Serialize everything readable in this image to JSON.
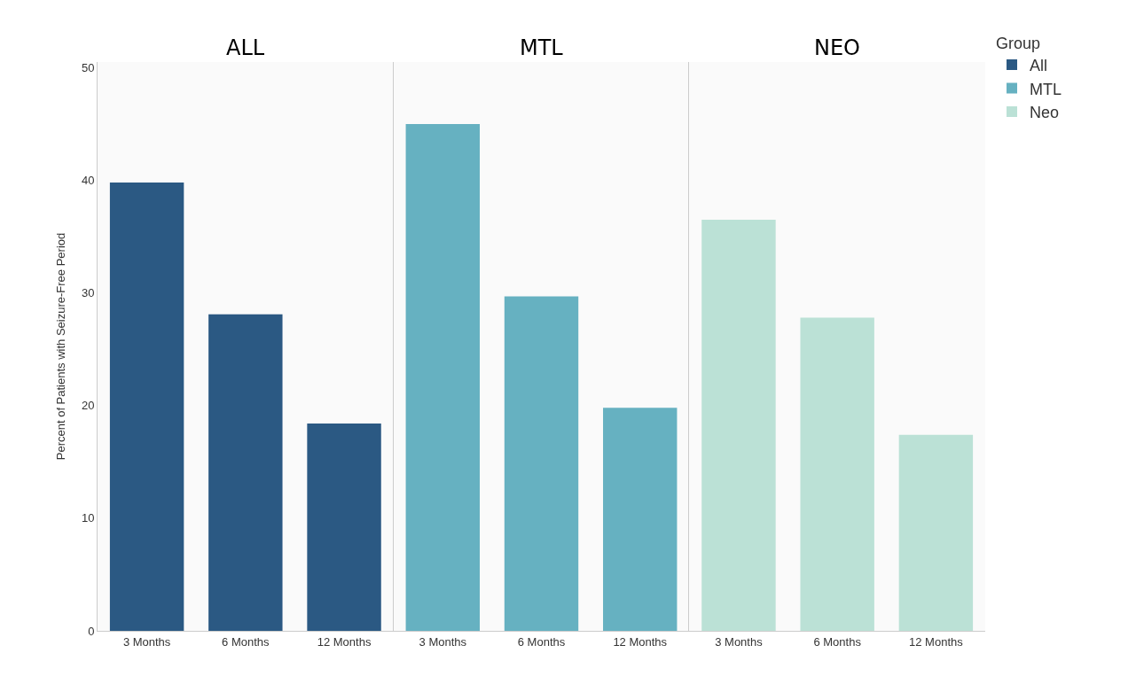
{
  "chart_data": [
    {
      "type": "bar",
      "title": "ALL",
      "ylabel": "Percent of Patients with Seizure-Free Period",
      "categories": [
        "3 Months",
        "6 Months",
        "12 Months"
      ],
      "series": [
        {
          "name": "All",
          "color": "#2b5983",
          "values": [
            39.8,
            28.1,
            18.4
          ]
        }
      ],
      "ylim": [
        0,
        50.5
      ],
      "yticks": [
        0,
        10,
        20,
        30,
        40,
        50
      ],
      "grid": false,
      "legend": "top right",
      "legend_title": "Group"
    },
    {
      "type": "bar",
      "title": "MTL",
      "categories": [
        "3 Months",
        "6 Months",
        "12 Months"
      ],
      "series": [
        {
          "name": "MTL",
          "color": "#66b1c1",
          "values": [
            45.0,
            29.7,
            19.8
          ]
        }
      ],
      "ylim": [
        0,
        50.5
      ],
      "yticks": [
        0,
        10,
        20,
        30,
        40,
        50
      ],
      "grid": false,
      "tick_labels": "x",
      "legend": "top right"
    },
    {
      "type": "bar",
      "title": "NEO",
      "categories": [
        "3 Months",
        "6 Months",
        "12 Months"
      ],
      "series": [
        {
          "name": "Neo",
          "color": "#bbe1d6",
          "values": [
            36.5,
            27.8,
            17.4
          ]
        }
      ],
      "ylim": [
        0,
        50.5
      ],
      "yticks": [
        0,
        10,
        20,
        30,
        40,
        50
      ],
      "grid": false,
      "tick_labels": "x",
      "legend": "top right"
    }
  ]
}
